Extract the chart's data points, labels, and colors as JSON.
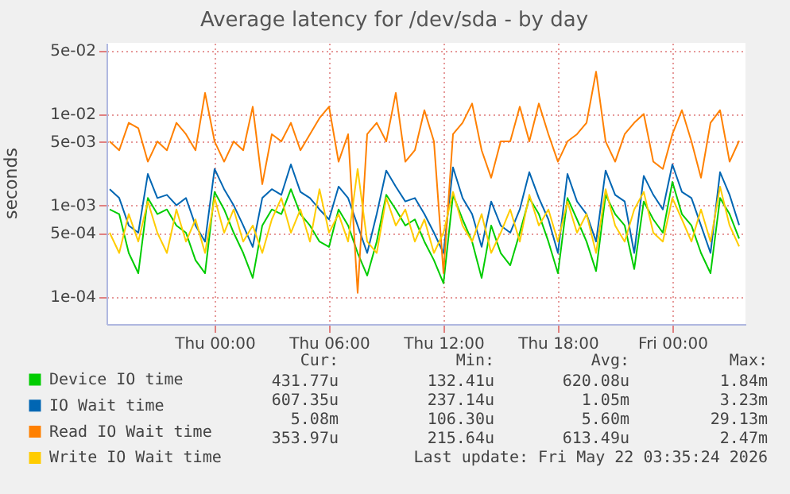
{
  "chart_data": {
    "type": "line",
    "title": "Average latency for /dev/sda - by day",
    "ylabel": "seconds",
    "log": true,
    "grid": true,
    "legend": "bottom",
    "line_style": "solid",
    "xlim": [
      "2026-05-20T18:20",
      "2026-05-22T03:50"
    ],
    "xticks": [
      {
        "value": "2026-05-21T00:00",
        "label": "Thu 00:00"
      },
      {
        "value": "2026-05-21T06:00",
        "label": "Thu 06:00"
      },
      {
        "value": "2026-05-21T12:00",
        "label": "Thu 12:00"
      },
      {
        "value": "2026-05-21T18:00",
        "label": "Thu 18:00"
      },
      {
        "value": "2026-05-22T00:00",
        "label": "Fri 00:00"
      }
    ],
    "ylim": [
      5e-05,
      0.06
    ],
    "yticks": [
      {
        "value": 0.05,
        "label": "5e-02"
      },
      {
        "value": 0.01,
        "label": "1e-02"
      },
      {
        "value": 0.005,
        "label": "5e-03"
      },
      {
        "value": 0.001,
        "label": "1e-03"
      },
      {
        "value": 0.0005,
        "label": "5e-04"
      },
      {
        "value": 0.0001,
        "label": "1e-04"
      }
    ],
    "x": [
      "2026-05-20T18:30",
      "2026-05-20T19:00",
      "2026-05-20T19:30",
      "2026-05-20T20:00",
      "2026-05-20T20:30",
      "2026-05-20T21:00",
      "2026-05-20T21:30",
      "2026-05-20T22:00",
      "2026-05-20T22:30",
      "2026-05-20T23:00",
      "2026-05-20T23:30",
      "2026-05-21T00:00",
      "2026-05-21T00:30",
      "2026-05-21T01:00",
      "2026-05-21T01:30",
      "2026-05-21T02:00",
      "2026-05-21T02:30",
      "2026-05-21T03:00",
      "2026-05-21T03:30",
      "2026-05-21T04:00",
      "2026-05-21T04:30",
      "2026-05-21T05:00",
      "2026-05-21T05:30",
      "2026-05-21T06:00",
      "2026-05-21T06:30",
      "2026-05-21T07:00",
      "2026-05-21T07:30",
      "2026-05-21T08:00",
      "2026-05-21T08:30",
      "2026-05-21T09:00",
      "2026-05-21T09:30",
      "2026-05-21T10:00",
      "2026-05-21T10:30",
      "2026-05-21T11:00",
      "2026-05-21T11:30",
      "2026-05-21T12:00",
      "2026-05-21T12:30",
      "2026-05-21T13:00",
      "2026-05-21T13:30",
      "2026-05-21T14:00",
      "2026-05-21T14:30",
      "2026-05-21T15:00",
      "2026-05-21T15:30",
      "2026-05-21T16:00",
      "2026-05-21T16:30",
      "2026-05-21T17:00",
      "2026-05-21T17:30",
      "2026-05-21T18:00",
      "2026-05-21T18:30",
      "2026-05-21T19:00",
      "2026-05-21T19:30",
      "2026-05-21T20:00",
      "2026-05-21T20:30",
      "2026-05-21T21:00",
      "2026-05-21T21:30",
      "2026-05-21T22:00",
      "2026-05-21T22:30",
      "2026-05-21T23:00",
      "2026-05-21T23:30",
      "2026-05-22T00:00",
      "2026-05-22T00:30",
      "2026-05-22T01:00",
      "2026-05-22T01:30",
      "2026-05-22T02:00",
      "2026-05-22T02:30",
      "2026-05-22T03:00",
      "2026-05-22T03:30"
    ],
    "series": [
      {
        "name": "Device IO time",
        "color": "#00cc00",
        "values": [
          0.0009,
          0.0008,
          0.0003,
          0.00018,
          0.0012,
          0.0008,
          0.0009,
          0.0006,
          0.0005,
          0.00025,
          0.00018,
          0.0014,
          0.0009,
          0.0005,
          0.0003,
          0.00016,
          0.0006,
          0.0009,
          0.0008,
          0.0015,
          0.0008,
          0.0006,
          0.0004,
          0.00035,
          0.0009,
          0.0006,
          0.0003,
          0.00017,
          0.0004,
          0.0013,
          0.0009,
          0.0006,
          0.0007,
          0.0004,
          0.00025,
          0.00014,
          0.0013,
          0.0007,
          0.0004,
          0.00016,
          0.0006,
          0.0003,
          0.00022,
          0.0005,
          0.0012,
          0.0008,
          0.0004,
          0.00018,
          0.0012,
          0.0007,
          0.0004,
          0.00019,
          0.0013,
          0.0008,
          0.0006,
          0.0002,
          0.0011,
          0.0007,
          0.0005,
          0.0018,
          0.0008,
          0.0006,
          0.0003,
          0.00018,
          0.0012,
          0.0008,
          0.000432
        ]
      },
      {
        "name": "IO Wait time",
        "color": "#0066b3",
        "values": [
          0.0015,
          0.0012,
          0.0006,
          0.0005,
          0.0022,
          0.0012,
          0.0013,
          0.001,
          0.0012,
          0.0006,
          0.0004,
          0.0025,
          0.0015,
          0.001,
          0.0006,
          0.00035,
          0.0012,
          0.0015,
          0.0013,
          0.0028,
          0.0014,
          0.0012,
          0.0009,
          0.0007,
          0.0016,
          0.0012,
          0.0006,
          0.0003,
          0.0008,
          0.0024,
          0.0016,
          0.0011,
          0.0012,
          0.0008,
          0.0005,
          0.0003,
          0.0026,
          0.0012,
          0.0008,
          0.00035,
          0.0011,
          0.0006,
          0.0005,
          0.0009,
          0.0023,
          0.0012,
          0.0007,
          0.0003,
          0.0022,
          0.0011,
          0.0008,
          0.0004,
          0.0024,
          0.0013,
          0.0011,
          0.0003,
          0.0021,
          0.0013,
          0.0009,
          0.0028,
          0.0014,
          0.0012,
          0.0006,
          0.0003,
          0.0023,
          0.0013,
          0.000607
        ]
      },
      {
        "name": "Read IO Wait time",
        "color": "#ff8000",
        "values": [
          0.005,
          0.004,
          0.008,
          0.007,
          0.003,
          0.005,
          0.004,
          0.008,
          0.006,
          0.004,
          0.017,
          0.005,
          0.003,
          0.005,
          0.004,
          0.012,
          0.0017,
          0.006,
          0.005,
          0.008,
          0.004,
          0.006,
          0.009,
          0.012,
          0.003,
          0.006,
          0.00011,
          0.006,
          0.008,
          0.005,
          0.017,
          0.003,
          0.004,
          0.011,
          0.005,
          0.00018,
          0.006,
          0.008,
          0.013,
          0.004,
          0.002,
          0.005,
          0.005,
          0.012,
          0.005,
          0.013,
          0.006,
          0.003,
          0.005,
          0.006,
          0.008,
          0.029,
          0.005,
          0.003,
          0.006,
          0.008,
          0.01,
          0.003,
          0.0025,
          0.006,
          0.011,
          0.005,
          0.002,
          0.008,
          0.011,
          0.003,
          0.00508
        ]
      },
      {
        "name": "Write IO Wait time",
        "color": "#ffcc00",
        "values": [
          0.0005,
          0.0003,
          0.0008,
          0.0004,
          0.0011,
          0.0005,
          0.0003,
          0.0009,
          0.0004,
          0.0007,
          0.0003,
          0.0012,
          0.0005,
          0.0009,
          0.0004,
          0.0006,
          0.0003,
          0.0007,
          0.0012,
          0.0005,
          0.0009,
          0.0004,
          0.0015,
          0.0005,
          0.0008,
          0.0004,
          0.0025,
          0.0004,
          0.0003,
          0.0012,
          0.0006,
          0.0009,
          0.0004,
          0.0007,
          0.0003,
          0.0005,
          0.0014,
          0.0006,
          0.0004,
          0.0008,
          0.0003,
          0.0005,
          0.0009,
          0.0004,
          0.0013,
          0.0006,
          0.0009,
          0.0004,
          0.0011,
          0.0005,
          0.0008,
          0.0003,
          0.0015,
          0.0006,
          0.0004,
          0.0009,
          0.0014,
          0.0005,
          0.0004,
          0.0012,
          0.0007,
          0.0004,
          0.0009,
          0.0004,
          0.0016,
          0.0006,
          0.000354
        ]
      }
    ],
    "annotations": [
      "Cur:",
      "Min:",
      "Avg:",
      "Max:",
      "431.77u",
      "132.41u",
      "620.08u",
      "1.84m",
      "607.35u",
      "237.14u",
      "1.05m",
      "3.23m",
      "5.08m",
      "106.30u",
      "5.60m",
      "29.13m",
      "353.97u",
      "215.64u",
      "613.49u",
      "2.47m",
      "Last update: Fri May 22 03:35:24 2026"
    ]
  }
}
